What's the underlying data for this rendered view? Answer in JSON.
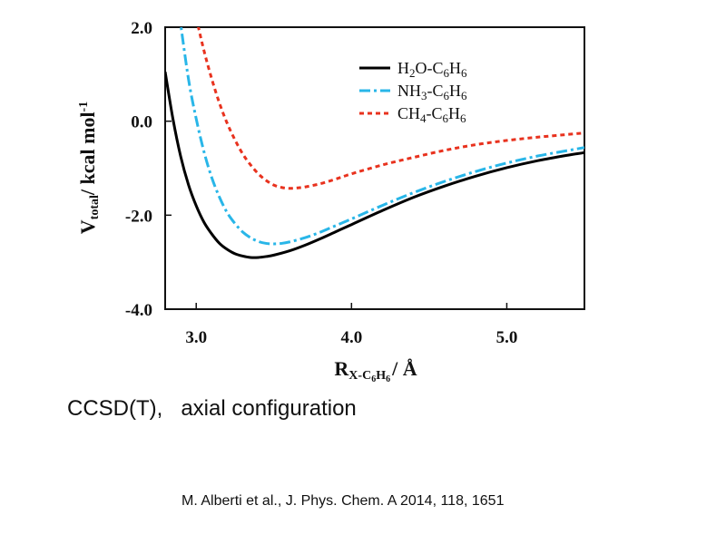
{
  "chart_data": {
    "type": "line",
    "xlabel": {
      "main": "R",
      "sub": "X-C",
      "sub6": "6",
      "subH": "H",
      "sub6b": "6",
      "unit": "/ Å"
    },
    "ylabel": {
      "main": "V",
      "sub": "total",
      "unit": "/ kcal mol",
      "sup": "-1"
    },
    "xlim": [
      2.8,
      5.5
    ],
    "ylim": [
      -4.0,
      2.0
    ],
    "xticks": [
      3.0,
      4.0,
      5.0
    ],
    "xtick_labels": [
      "3.0",
      "4.0",
      "5.0"
    ],
    "yticks": [
      -4.0,
      -2.0,
      0.0,
      2.0
    ],
    "ytick_labels": [
      "-4.0",
      "-2.0",
      "0.0",
      "2.0"
    ],
    "grid": false,
    "legend_position": "top-right",
    "series": [
      {
        "name": "H2O-C6H6",
        "label_parts": [
          "H",
          "2",
          "O-C",
          "6",
          "H",
          "6"
        ],
        "color": "#000000",
        "style": "solid",
        "x": [
          2.8,
          2.85,
          2.9,
          2.95,
          3.0,
          3.05,
          3.1,
          3.15,
          3.2,
          3.25,
          3.3,
          3.35,
          3.4,
          3.45,
          3.5,
          3.6,
          3.7,
          3.8,
          3.9,
          4.0,
          4.2,
          4.4,
          4.6,
          4.8,
          5.0,
          5.2,
          5.4,
          5.5
        ],
        "y": [
          1.05,
          0.05,
          -0.75,
          -1.35,
          -1.8,
          -2.15,
          -2.4,
          -2.6,
          -2.73,
          -2.82,
          -2.87,
          -2.9,
          -2.9,
          -2.88,
          -2.85,
          -2.76,
          -2.64,
          -2.5,
          -2.35,
          -2.2,
          -1.9,
          -1.62,
          -1.38,
          -1.17,
          -0.99,
          -0.84,
          -0.72,
          -0.67
        ]
      },
      {
        "name": "NH3-C6H6",
        "label_parts": [
          "NH",
          "3",
          "-C",
          "6",
          "H",
          "6"
        ],
        "color": "#29b6e8",
        "style": "dashdot",
        "x": [
          2.89,
          2.95,
          3.0,
          3.05,
          3.1,
          3.15,
          3.2,
          3.25,
          3.3,
          3.35,
          3.4,
          3.45,
          3.5,
          3.55,
          3.6,
          3.7,
          3.8,
          3.9,
          4.0,
          4.2,
          4.4,
          4.6,
          4.8,
          5.0,
          5.2,
          5.4,
          5.5
        ],
        "y": [
          2.3,
          0.9,
          0.05,
          -0.65,
          -1.2,
          -1.62,
          -1.95,
          -2.18,
          -2.36,
          -2.48,
          -2.56,
          -2.6,
          -2.61,
          -2.6,
          -2.57,
          -2.48,
          -2.36,
          -2.22,
          -2.08,
          -1.79,
          -1.52,
          -1.28,
          -1.07,
          -0.89,
          -0.74,
          -0.62,
          -0.56
        ]
      },
      {
        "name": "CH4-C6H6",
        "label_parts": [
          "CH",
          "4",
          "-C",
          "6",
          "H",
          "6"
        ],
        "color": "#e8321e",
        "style": "dotted",
        "x": [
          3.0,
          3.05,
          3.1,
          3.15,
          3.2,
          3.25,
          3.3,
          3.35,
          3.4,
          3.45,
          3.5,
          3.55,
          3.6,
          3.65,
          3.7,
          3.8,
          3.9,
          4.0,
          4.2,
          4.4,
          4.6,
          4.8,
          5.0,
          5.2,
          5.4,
          5.5
        ],
        "y": [
          2.2,
          1.5,
          0.9,
          0.38,
          -0.05,
          -0.4,
          -0.7,
          -0.93,
          -1.12,
          -1.26,
          -1.36,
          -1.41,
          -1.43,
          -1.42,
          -1.4,
          -1.33,
          -1.23,
          -1.12,
          -0.93,
          -0.77,
          -0.62,
          -0.5,
          -0.41,
          -0.34,
          -0.28,
          -0.25
        ]
      }
    ]
  },
  "caption": {
    "text": "CCSD(T),   axial configuration"
  },
  "citation": {
    "text": "M. Alberti et al., J. Phys. Chem. A 2014, 118, 1651"
  }
}
